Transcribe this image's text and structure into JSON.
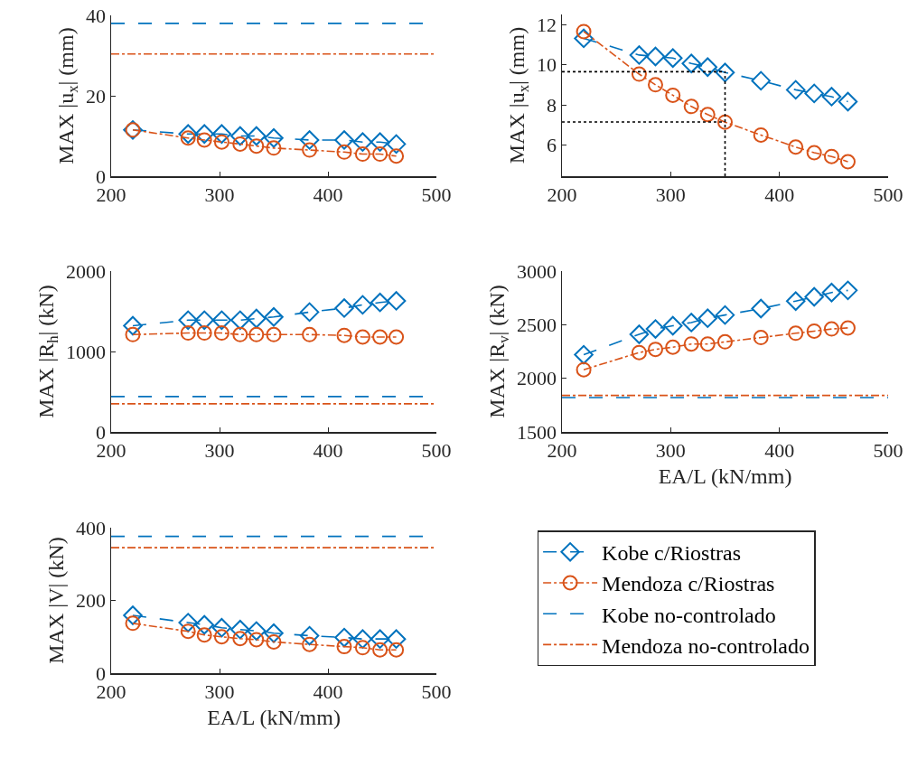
{
  "chart_data": [
    {
      "type": "line",
      "x": [
        220,
        271,
        286,
        302,
        319,
        334,
        350,
        383,
        415,
        432,
        448,
        463
      ],
      "xlim": [
        200,
        500
      ],
      "xticks": [
        200,
        300,
        400,
        500
      ],
      "ylim": [
        0,
        40
      ],
      "yticks": [
        0,
        20,
        40
      ],
      "ylabel": "MAX |u$_{x}$| (mm)",
      "legend": false,
      "series": [
        {
          "color": "#0072bd",
          "marker": "diamond",
          "line_style": "dashed",
          "values": [
            11.5,
            10.5,
            10.5,
            10.5,
            10,
            10,
            9.5,
            9,
            9,
            8.5,
            8.5,
            8
          ]
        },
        {
          "color": "#d95319",
          "marker": "circle",
          "line_style": "dashdot",
          "values": [
            11.5,
            9.5,
            9,
            8.5,
            8,
            7.5,
            7,
            6.5,
            6,
            5.5,
            5.5,
            5
          ]
        }
      ],
      "ref_lines": [
        {
          "axis": "y",
          "value": 38,
          "color": "#0072bd",
          "line_style": "dashed"
        },
        {
          "axis": "y",
          "value": 30.4,
          "color": "#d95319",
          "line_style": "dashdot"
        }
      ]
    },
    {
      "type": "line",
      "x": [
        220,
        271,
        286,
        302,
        319,
        334,
        350,
        383,
        415,
        432,
        448,
        463
      ],
      "xlim": [
        200,
        500
      ],
      "xticks": [
        200,
        300,
        400,
        500
      ],
      "ylim": [
        4.45,
        12.5
      ],
      "yticks": [
        6,
        8,
        10,
        12
      ],
      "ylabel": "MAX |u$_{x}$| (mm)",
      "legend": false,
      "ref_lines": [
        {
          "axis": "x",
          "value": 350,
          "color": "#000000",
          "line_style": "dotted"
        },
        {
          "axis": "y",
          "value": 9.65,
          "color": "#000000",
          "line_style": "dotted"
        },
        {
          "axis": "y",
          "value": 7.15,
          "color": "#000000",
          "line_style": "dotted"
        }
      ],
      "series": [
        {
          "color": "#0072bd",
          "marker": "diamond",
          "line_style": "dashed",
          "values": [
            11.31,
            10.48,
            10.41,
            10.33,
            10.06,
            9.88,
            9.61,
            9.2,
            8.75,
            8.57,
            8.41,
            8.16
          ]
        },
        {
          "color": "#d95319",
          "marker": "circle",
          "line_style": "dashdot",
          "values": [
            11.65,
            9.53,
            9.0,
            8.48,
            7.92,
            7.52,
            7.14,
            6.5,
            5.9,
            5.62,
            5.43,
            5.17
          ]
        }
      ]
    },
    {
      "type": "line",
      "x": [
        220,
        271,
        286,
        302,
        319,
        334,
        350,
        383,
        415,
        432,
        448,
        463
      ],
      "xlim": [
        200,
        500
      ],
      "xticks": [
        200,
        300,
        400,
        500
      ],
      "ylim": [
        0,
        2000
      ],
      "yticks": [
        0,
        1000,
        2000
      ],
      "ylabel": "MAX |R$_{h}$| (kN)",
      "legend": false,
      "series": [
        {
          "color": "#0072bd",
          "marker": "diamond",
          "line_style": "dashed",
          "values": [
            1320,
            1390,
            1390,
            1390,
            1390,
            1410,
            1430,
            1490,
            1540,
            1580,
            1610,
            1630
          ]
        },
        {
          "color": "#d95319",
          "marker": "circle",
          "line_style": "dashdot",
          "values": [
            1210,
            1230,
            1230,
            1230,
            1210,
            1210,
            1210,
            1210,
            1200,
            1180,
            1180,
            1180
          ]
        }
      ],
      "ref_lines": [
        {
          "axis": "y",
          "value": 440,
          "color": "#0072bd",
          "line_style": "dashed"
        },
        {
          "axis": "y",
          "value": 350,
          "color": "#d95319",
          "line_style": "dashdot"
        }
      ]
    },
    {
      "type": "line",
      "x": [
        220,
        271,
        286,
        302,
        319,
        334,
        350,
        383,
        415,
        432,
        448,
        463
      ],
      "xlim": [
        200,
        500
      ],
      "xticks": [
        200,
        300,
        400,
        500
      ],
      "ylim": [
        1500,
        3000
      ],
      "yticks": [
        1500,
        2000,
        2500,
        3000
      ],
      "xlabel": "EA/L (kN/mm)",
      "ylabel": "MAX |R$_{v}$| (kN)",
      "legend": false,
      "series": [
        {
          "color": "#0072bd",
          "marker": "diamond",
          "line_style": "dashed",
          "values": [
            2220,
            2410,
            2460,
            2490,
            2520,
            2560,
            2590,
            2650,
            2720,
            2760,
            2800,
            2820
          ]
        },
        {
          "color": "#d95319",
          "marker": "circle",
          "line_style": "dashdot",
          "values": [
            2080,
            2240,
            2270,
            2290,
            2320,
            2320,
            2340,
            2380,
            2420,
            2440,
            2460,
            2470
          ]
        }
      ],
      "ref_lines": [
        {
          "axis": "y",
          "value": 1820,
          "color": "#0072bd",
          "line_style": "dashed"
        },
        {
          "axis": "y",
          "value": 1840,
          "color": "#d95319",
          "line_style": "dashdot"
        }
      ]
    },
    {
      "type": "line",
      "x": [
        220,
        271,
        286,
        302,
        319,
        334,
        350,
        383,
        415,
        432,
        448,
        463
      ],
      "xlim": [
        200,
        500
      ],
      "xticks": [
        200,
        300,
        400,
        500
      ],
      "ylim": [
        0,
        400
      ],
      "yticks": [
        0,
        200,
        400
      ],
      "xlabel": "EA/L (kN/mm)",
      "ylabel": "MAX |V| (kN)",
      "legend": "right",
      "series": [
        {
          "name": "Kobe c/Riostras",
          "color": "#0072bd",
          "marker": "diamond",
          "line_style": "dashed",
          "values": [
            159,
            139,
            133,
            125,
            120,
            116,
            110,
            103,
            98,
            94,
            94,
            94
          ]
        },
        {
          "name": "Mendoza c/Riostras",
          "color": "#d95319",
          "marker": "circle",
          "line_style": "dashdot",
          "values": [
            137,
            115,
            105,
            100,
            95,
            92,
            86,
            79,
            73,
            70,
            64,
            64
          ]
        }
      ],
      "ref_lines": [
        {
          "axis": "y",
          "value": 376,
          "label": "Kobe no-controlado",
          "color": "#0072bd",
          "line_style": "dashed"
        },
        {
          "axis": "y",
          "value": 345,
          "label": "Mendoza no-controlado",
          "color": "#d95319",
          "line_style": "dashdot"
        }
      ]
    }
  ]
}
